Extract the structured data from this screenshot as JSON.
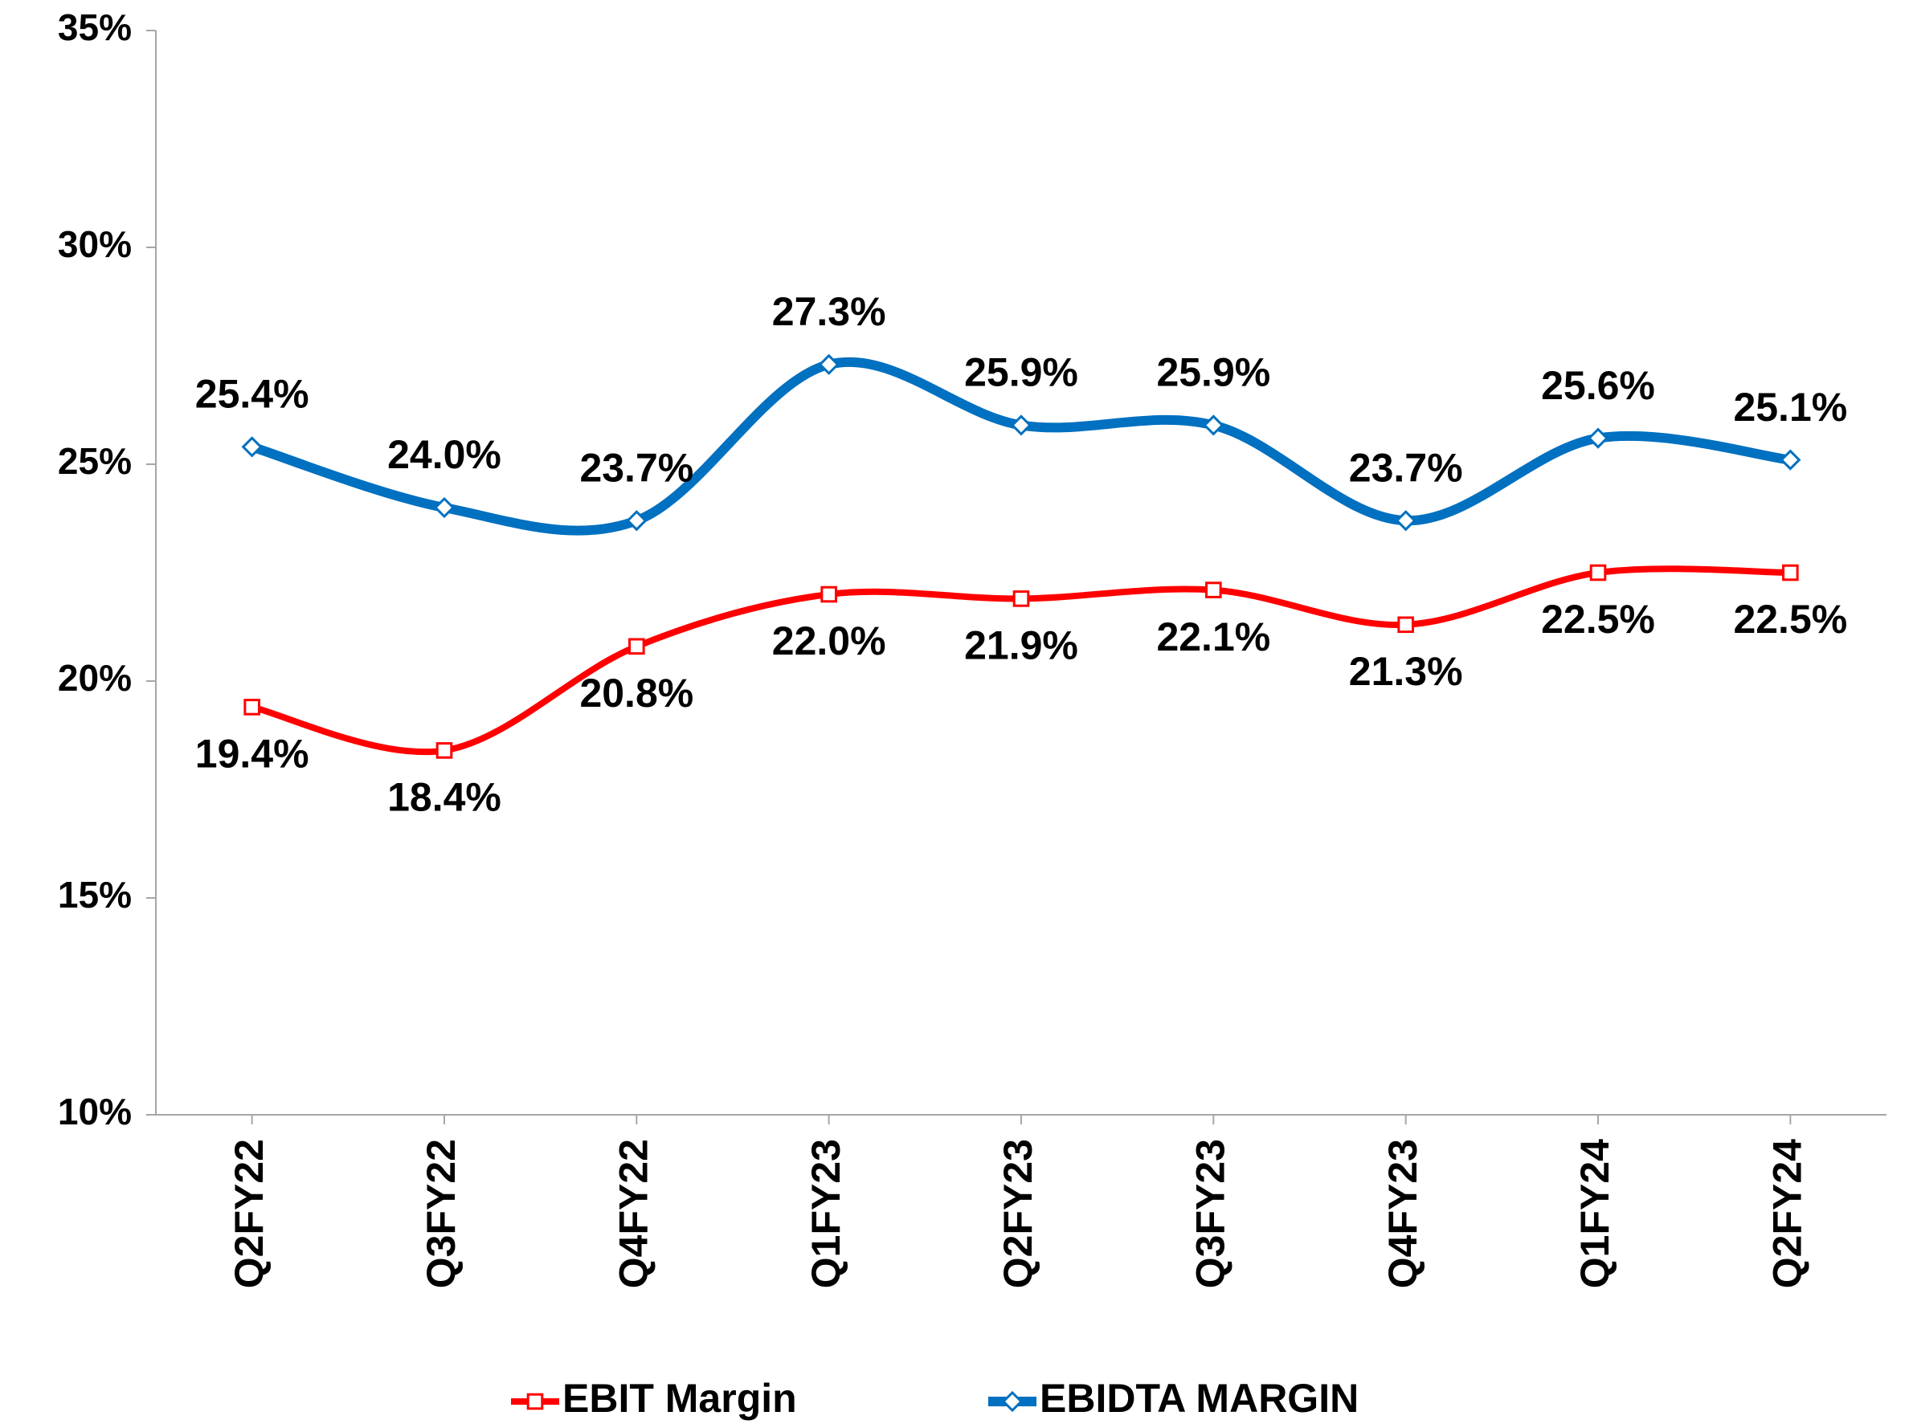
{
  "chart_data": {
    "type": "line",
    "categories": [
      "Q2FY22",
      "Q3FY22",
      "Q4FY22",
      "Q1FY23",
      "Q2FY23",
      "Q3FY23",
      "Q4FY23",
      "Q1FY24",
      "Q2FY24"
    ],
    "series": [
      {
        "name": "EBIT Margin",
        "color": "#ff0000",
        "marker": "square",
        "values": [
          19.4,
          18.4,
          20.8,
          22.0,
          21.9,
          22.1,
          21.3,
          22.5,
          22.5
        ],
        "value_labels": [
          "19.4%",
          "18.4%",
          "20.8%",
          "22.0%",
          "21.9%",
          "22.1%",
          "21.3%",
          "22.5%",
          "22.5%"
        ]
      },
      {
        "name": "EBIDTA MARGIN",
        "color": "#0070c0",
        "marker": "diamond",
        "values": [
          25.4,
          24.0,
          23.7,
          27.3,
          25.9,
          25.9,
          23.7,
          25.6,
          25.1
        ],
        "value_labels": [
          "25.4%",
          "24.0%",
          "23.7%",
          "27.3%",
          "25.9%",
          "25.9%",
          "23.7%",
          "25.6%",
          "25.1%"
        ]
      }
    ],
    "ylim": [
      10,
      35
    ],
    "yticks": [
      {
        "value": 10,
        "label": "10%"
      },
      {
        "value": 15,
        "label": "15%"
      },
      {
        "value": 20,
        "label": "20%"
      },
      {
        "value": 25,
        "label": "25%"
      },
      {
        "value": 30,
        "label": "30%"
      },
      {
        "value": 35,
        "label": "35%"
      }
    ],
    "grid": false,
    "smooth": true,
    "legend": "bottom"
  }
}
